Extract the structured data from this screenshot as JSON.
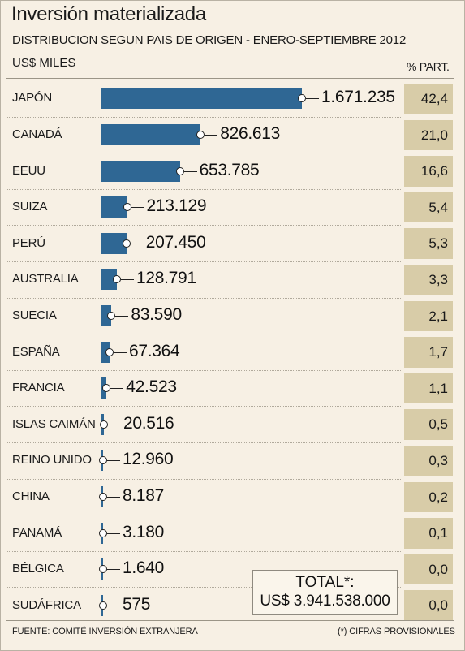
{
  "chart_data": {
    "type": "bar",
    "orientation": "horizontal",
    "title": "Inversión materializada",
    "subtitle": "DISTRIBUCION SEGUN PAIS DE ORIGEN - ENERO-SEPTIEMBRE 2012",
    "unit": "US$ MILES",
    "share_header": "% PART.",
    "categories": [
      "JAPÓN",
      "CANADÁ",
      "EEUU",
      "SUIZA",
      "PERÚ",
      "AUSTRALIA",
      "SUECIA",
      "ESPAÑA",
      "FRANCIA",
      "ISLAS CAIMÁN",
      "REINO UNIDO",
      "CHINA",
      "PANAMÁ",
      "BÉLGICA",
      "SUDÁFRICA"
    ],
    "values": [
      1671235,
      826613,
      653785,
      213129,
      207450,
      128791,
      83590,
      67364,
      42523,
      20516,
      12960,
      8187,
      3180,
      1640,
      575
    ],
    "value_labels": [
      "1.671.235",
      "826.613",
      "653.785",
      "213.129",
      "207.450",
      "128.791",
      "83.590",
      "67.364",
      "42.523",
      "20.516",
      "12.960",
      "8.187",
      "3.180",
      "1.640",
      "575"
    ],
    "shares": [
      "42,4",
      "21,0",
      "16,6",
      "5,4",
      "5,3",
      "3,3",
      "2,1",
      "1,7",
      "1,1",
      "0,5",
      "0,3",
      "0,2",
      "0,1",
      "0,0",
      "0,0"
    ],
    "xlim": [
      0,
      1671235
    ],
    "colors": {
      "bar": "#2f6794",
      "share_box": "#d8cca8",
      "background": "#f7f0e4"
    },
    "total": {
      "label": "TOTAL*:",
      "value": "US$ 3.941.538.000"
    }
  },
  "footer": {
    "source": "FUENTE: COMITÉ INVERSIÓN EXTRANJERA",
    "note": "(*) CIFRAS PROVISIONALES"
  }
}
